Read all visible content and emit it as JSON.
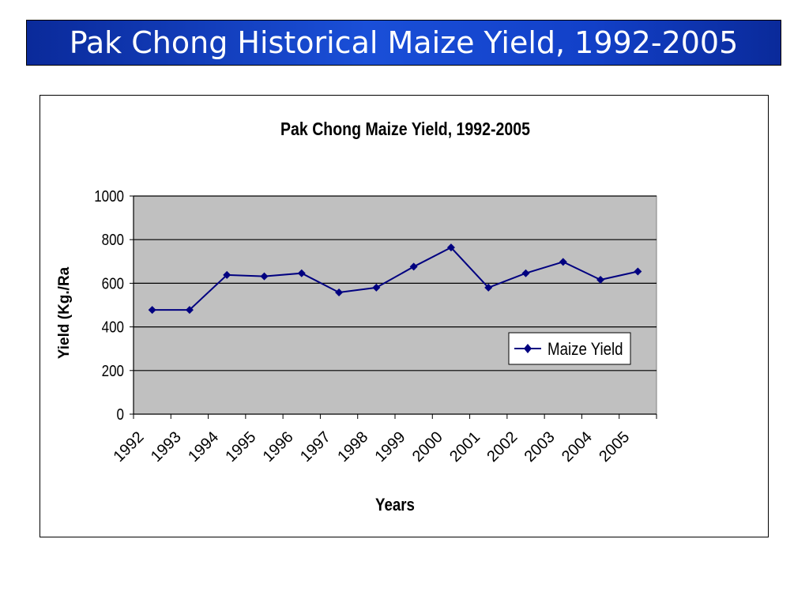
{
  "slide": {
    "title": "Pak Chong Historical Maize Yield, 1992-2005"
  },
  "colors": {
    "title_bar": "#1a4fd8",
    "plot_area": "#c0c0c0",
    "series_line": "#000080"
  },
  "chart_data": {
    "type": "line",
    "title": "Pak Chong Maize Yield, 1992-2005",
    "xlabel": "Years",
    "ylabel": "Yield (Kg./Ra",
    "categories": [
      "1992",
      "1993",
      "1994",
      "1995",
      "1996",
      "1997",
      "1998",
      "1999",
      "2000",
      "2001",
      "2002",
      "2003",
      "2004",
      "2005"
    ],
    "series": [
      {
        "name": "Maize Yield",
        "values": [
          478,
          478,
          638,
          632,
          646,
          558,
          580,
          676,
          764,
          580,
          646,
          698,
          616,
          654
        ]
      }
    ],
    "ylim": [
      0,
      1000
    ],
    "yticks": [
      0,
      200,
      400,
      600,
      800,
      1000
    ],
    "grid": true,
    "legend_position": "right"
  }
}
